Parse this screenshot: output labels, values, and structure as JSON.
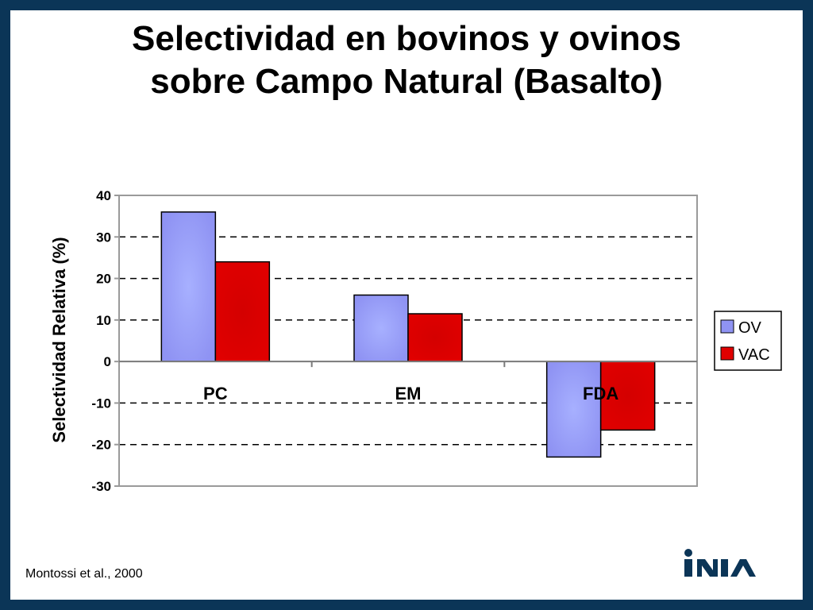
{
  "slide": {
    "title_line1": "Selectividad en bovinos y ovinos",
    "title_line2": "sobre Campo Natural (Basalto)",
    "source": "Montossi et al., 2000",
    "logo_text": "INIA",
    "frame_color": "#0b3557"
  },
  "chart_data": {
    "type": "bar",
    "categories": [
      "PC",
      "EM",
      "FDA"
    ],
    "series": [
      {
        "name": "OV",
        "values": [
          36,
          16,
          -23
        ],
        "color": "#8f93f3"
      },
      {
        "name": "VAC",
        "values": [
          24,
          11.5,
          -16.5
        ],
        "color": "#e00000"
      }
    ],
    "ylabel": "Selectividad Relativa (%)",
    "ylim": [
      -30,
      40
    ],
    "yticks": [
      -30,
      -20,
      -10,
      0,
      10,
      20,
      30,
      40
    ],
    "ytick_labels": [
      "-30",
      "-20",
      "-10",
      "0",
      "10",
      "20",
      "30",
      "40"
    ],
    "grid": "dashed horizontal",
    "legend": "right"
  }
}
